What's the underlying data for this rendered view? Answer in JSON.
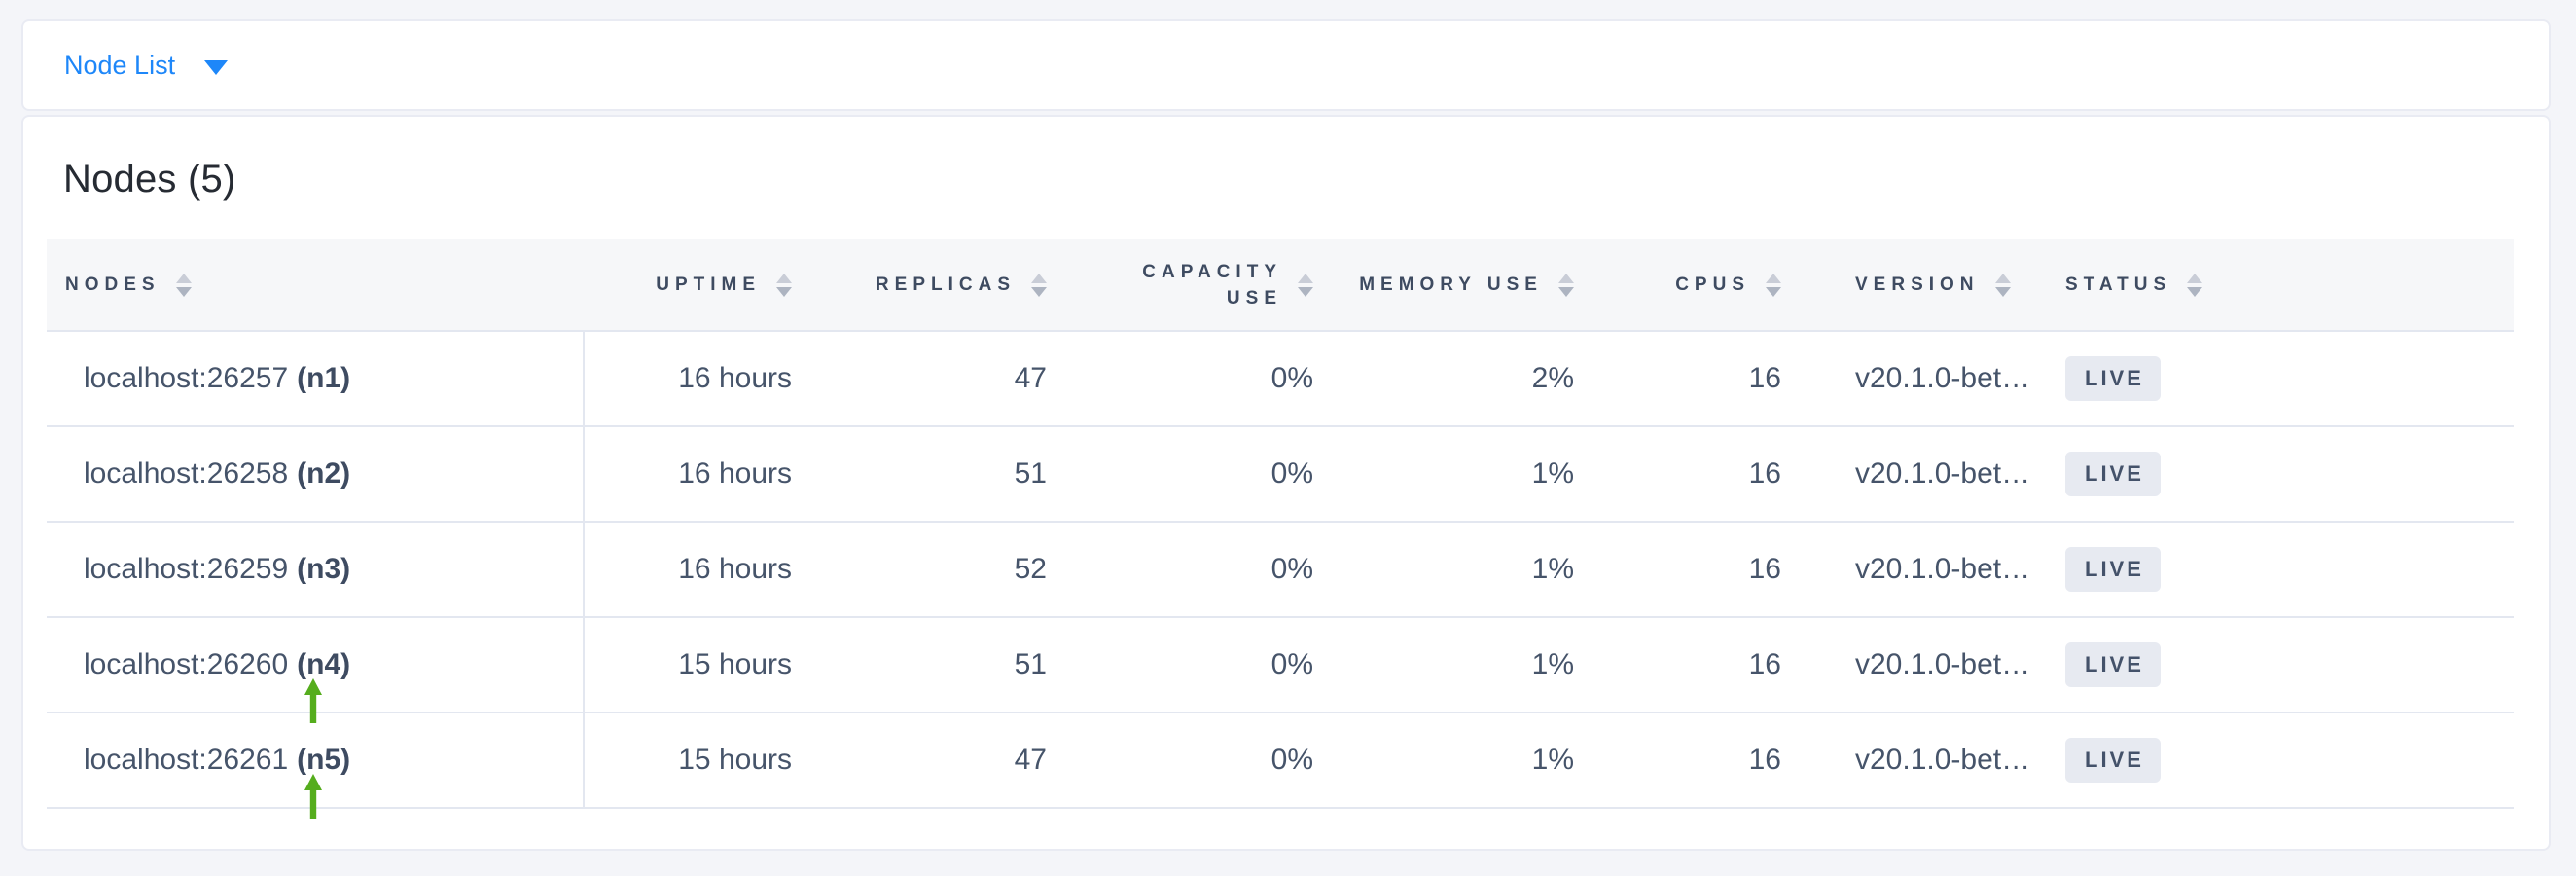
{
  "nav": {
    "dropdown_label": "Node List"
  },
  "panel": {
    "title": "Nodes (5)"
  },
  "table": {
    "columns": [
      {
        "key": "nodes",
        "label": "NODES",
        "align": "left"
      },
      {
        "key": "uptime",
        "label": "UPTIME",
        "align": "right"
      },
      {
        "key": "replicas",
        "label": "REPLICAS",
        "align": "right"
      },
      {
        "key": "capacity_use",
        "label": "CAPACITY USE",
        "align": "right"
      },
      {
        "key": "memory_use",
        "label": "MEMORY USE",
        "align": "right"
      },
      {
        "key": "cpus",
        "label": "CPUS",
        "align": "right"
      },
      {
        "key": "version",
        "label": "VERSION",
        "align": "left"
      },
      {
        "key": "status",
        "label": "STATUS",
        "align": "left"
      }
    ],
    "rows": [
      {
        "node_address": "localhost:26257",
        "node_id": "(n1)",
        "uptime": "16 hours",
        "replicas": "47",
        "capacity_use": "0%",
        "memory_use": "2%",
        "cpus": "16",
        "version": "v20.1.0-bet…",
        "status": "LIVE",
        "annotated": false
      },
      {
        "node_address": "localhost:26258",
        "node_id": "(n2)",
        "uptime": "16 hours",
        "replicas": "51",
        "capacity_use": "0%",
        "memory_use": "1%",
        "cpus": "16",
        "version": "v20.1.0-bet…",
        "status": "LIVE",
        "annotated": false
      },
      {
        "node_address": "localhost:26259",
        "node_id": "(n3)",
        "uptime": "16 hours",
        "replicas": "52",
        "capacity_use": "0%",
        "memory_use": "1%",
        "cpus": "16",
        "version": "v20.1.0-bet…",
        "status": "LIVE",
        "annotated": false
      },
      {
        "node_address": "localhost:26260",
        "node_id": "(n4)",
        "uptime": "15 hours",
        "replicas": "51",
        "capacity_use": "0%",
        "memory_use": "1%",
        "cpus": "16",
        "version": "v20.1.0-bet…",
        "status": "LIVE",
        "annotated": true
      },
      {
        "node_address": "localhost:26261",
        "node_id": "(n5)",
        "uptime": "15 hours",
        "replicas": "47",
        "capacity_use": "0%",
        "memory_use": "1%",
        "cpus": "16",
        "version": "v20.1.0-bet…",
        "status": "LIVE",
        "annotated": true
      }
    ]
  },
  "colors": {
    "accent_blue": "#1e87f9",
    "annotation_green": "#55ad1d",
    "status_live_bg": "#e7eaf1",
    "status_live_text": "#44526a"
  }
}
